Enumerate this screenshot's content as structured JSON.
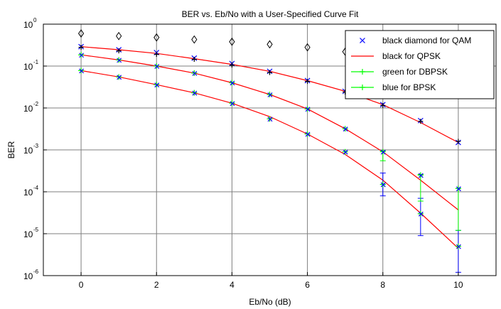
{
  "chart_data": {
    "type": "scatter",
    "title": "BER vs. Eb/No with a User-Specified Curve Fit",
    "xlabel": "Eb/No (dB)",
    "ylabel": "BER",
    "xlim": [
      -1,
      11
    ],
    "ylim": [
      1e-06,
      1
    ],
    "yscale": "log",
    "grid": true,
    "legend_position": "top-right",
    "x_ticks": [
      0,
      2,
      4,
      6,
      8,
      10
    ],
    "y_ticks": [
      "-6",
      "-5",
      "-4",
      "-3",
      "-2",
      "-1",
      "0"
    ],
    "y_tick_base": "10",
    "series": [
      {
        "name": "black diamond for QAM",
        "marker": "x",
        "color": "#0000ff",
        "x": [
          0,
          1,
          2,
          3,
          4,
          5,
          6,
          7,
          8,
          9,
          10
        ],
        "y": [
          0.29,
          0.245,
          0.21,
          0.155,
          0.115,
          0.075,
          0.045,
          0.025,
          0.012,
          0.005,
          0.0015
        ]
      },
      {
        "name": "black for QPSK",
        "marker": "line",
        "color": "#ff0000",
        "x": [
          0,
          1,
          2,
          3,
          4,
          5,
          6,
          7,
          8,
          9,
          10
        ],
        "y": [
          0.29,
          0.245,
          0.2,
          0.15,
          0.11,
          0.075,
          0.045,
          0.025,
          0.012,
          0.0045,
          0.0015
        ]
      },
      {
        "name": "green for DBPSK",
        "marker": "+",
        "color": "#00ff00",
        "x": [
          0,
          1,
          2,
          3,
          4,
          5,
          6,
          7,
          8,
          9,
          10
        ],
        "y": [
          0.185,
          0.14,
          0.1,
          0.068,
          0.04,
          0.021,
          0.0095,
          0.0032,
          0.0009,
          0.00025,
          0.00012
        ]
      },
      {
        "name": "blue for BPSK",
        "marker": "+",
        "color": "#00ff00",
        "x": [
          0,
          1,
          2,
          3,
          4,
          5,
          6,
          7,
          8,
          9,
          10
        ],
        "y": [
          0.078,
          0.055,
          0.036,
          0.023,
          0.013,
          0.0055,
          0.0024,
          0.0009,
          0.00015,
          3e-05,
          5e-06
        ]
      }
    ],
    "diamonds": {
      "x": [
        0,
        1,
        2,
        3,
        4,
        5,
        6,
        7,
        8
      ],
      "y": [
        0.6,
        0.52,
        0.48,
        0.43,
        0.38,
        0.33,
        0.28,
        0.22,
        0.18
      ]
    },
    "black_crosses": {
      "x": [
        0,
        1,
        2,
        3,
        4,
        5,
        6,
        7,
        8,
        9,
        10
      ],
      "y": [
        0.28,
        0.23,
        0.19,
        0.145,
        0.105,
        0.07,
        0.043,
        0.024,
        0.0115,
        0.0048,
        0.0016
      ]
    },
    "fit_curves": [
      {
        "color": "#ff0000",
        "x": [
          0,
          1,
          2,
          3,
          4,
          5,
          6,
          7,
          8,
          9,
          10
        ],
        "y": [
          0.29,
          0.245,
          0.2,
          0.15,
          0.11,
          0.075,
          0.045,
          0.025,
          0.012,
          0.0045,
          0.0015
        ]
      },
      {
        "color": "#ff0000",
        "x": [
          0,
          1,
          2,
          3,
          4,
          5,
          6,
          7,
          8,
          9,
          10
        ],
        "y": [
          0.185,
          0.14,
          0.1,
          0.068,
          0.04,
          0.021,
          0.0095,
          0.0032,
          0.0009,
          0.00019,
          3.7e-05
        ]
      },
      {
        "color": "#ff0000",
        "x": [
          0,
          1,
          2,
          3,
          4,
          5,
          6,
          7,
          8,
          9,
          10
        ],
        "y": [
          0.078,
          0.055,
          0.036,
          0.023,
          0.013,
          0.0062,
          0.0024,
          0.00078,
          0.00019,
          3.1e-05,
          4.5e-06
        ]
      }
    ],
    "error_bars": [
      {
        "color": "#0000ff",
        "x": 10,
        "lo": 1.2e-06,
        "hi": 1.2e-05
      },
      {
        "color": "#0000ff",
        "x": 9,
        "lo": 9e-06,
        "hi": 7e-05
      },
      {
        "color": "#00ff00",
        "x": 9,
        "lo": 6e-05,
        "hi": 0.00026
      },
      {
        "color": "#00ff00",
        "x": 10,
        "lo": 1.2e-05,
        "hi": 0.00012
      },
      {
        "color": "#0000ff",
        "x": 8,
        "lo": 8e-05,
        "hi": 0.00028
      },
      {
        "color": "#00ff00",
        "x": 8,
        "lo": 0.00055,
        "hi": 0.00095
      }
    ]
  }
}
